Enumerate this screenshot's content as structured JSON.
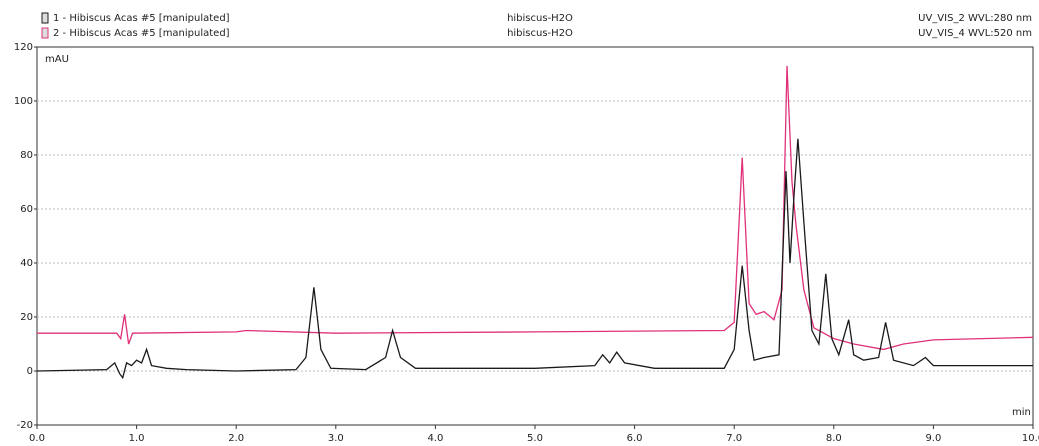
{
  "chart_data": {
    "type": "line",
    "xlabel": "min",
    "ylabel": "mAU",
    "xlim": [
      0,
      10
    ],
    "ylim": [
      -20,
      120
    ],
    "xticks": [
      {
        "value": 0,
        "label": "0.0"
      },
      {
        "value": 1,
        "label": "1.0"
      },
      {
        "value": 2,
        "label": "2.0"
      },
      {
        "value": 3,
        "label": "3.0"
      },
      {
        "value": 4,
        "label": "4.0"
      },
      {
        "value": 5,
        "label": "5.0"
      },
      {
        "value": 6,
        "label": "6.0"
      },
      {
        "value": 7,
        "label": "7.0"
      },
      {
        "value": 8,
        "label": "8.0"
      },
      {
        "value": 9,
        "label": "9.0"
      },
      {
        "value": 10,
        "label": "10.0"
      }
    ],
    "yticks": [
      -20,
      0,
      20,
      40,
      60,
      80,
      100,
      120
    ],
    "grid": true,
    "series": [
      {
        "name": "1 - Hibiscus Acas #5 [manipulated]",
        "sample": "hibiscus-H2O",
        "detector": "UV_VIS_2 WVL:280 nm",
        "color": "#1a1a1a",
        "x": [
          0,
          0.7,
          0.78,
          0.83,
          0.86,
          0.9,
          0.95,
          1.0,
          1.05,
          1.1,
          1.15,
          1.3,
          1.5,
          2.0,
          2.6,
          2.7,
          2.78,
          2.85,
          2.95,
          3.3,
          3.5,
          3.57,
          3.65,
          3.8,
          4.5,
          5.0,
          5.6,
          5.68,
          5.75,
          5.82,
          5.9,
          6.2,
          6.9,
          7.0,
          7.08,
          7.15,
          7.2,
          7.3,
          7.45,
          7.52,
          7.56,
          7.6,
          7.64,
          7.7,
          7.78,
          7.85,
          7.92,
          7.98,
          8.05,
          8.15,
          8.2,
          8.3,
          8.45,
          8.52,
          8.6,
          8.8,
          8.92,
          9.0,
          9.5,
          9.9,
          10.0
        ],
        "values": [
          0,
          0.5,
          3,
          -1,
          -2.5,
          3,
          2,
          4,
          3,
          8,
          2,
          1,
          0.5,
          0,
          0.5,
          5,
          31,
          8,
          1,
          0.5,
          5,
          15,
          5,
          1,
          1,
          1,
          2,
          6,
          3,
          7,
          3,
          1,
          1,
          8,
          39,
          15,
          4,
          5,
          6,
          74,
          40,
          65,
          86,
          55,
          15,
          10,
          36,
          12,
          6,
          19,
          6,
          4,
          5,
          18,
          4,
          2,
          5,
          2,
          2,
          2,
          2
        ]
      },
      {
        "name": "2 - Hibiscus Acas #5 [manipulated]",
        "sample": "hibiscus-H2O",
        "detector": "UV_VIS_4 WVL:520 nm",
        "color": "#e0307a",
        "x": [
          0,
          0.8,
          0.84,
          0.88,
          0.92,
          0.96,
          2.0,
          2.1,
          3.0,
          5.0,
          6.9,
          7.0,
          7.08,
          7.15,
          7.22,
          7.3,
          7.4,
          7.48,
          7.53,
          7.58,
          7.62,
          7.7,
          7.8,
          8.0,
          8.2,
          8.5,
          8.7,
          9.0,
          10.0
        ],
        "values": [
          14,
          14,
          12,
          21,
          10,
          14,
          14.5,
          15,
          14,
          14.5,
          15,
          18,
          79,
          25,
          21,
          22,
          19,
          30,
          113,
          70,
          54,
          30,
          16,
          12,
          10,
          8,
          10,
          11.5,
          12.5
        ]
      }
    ]
  }
}
